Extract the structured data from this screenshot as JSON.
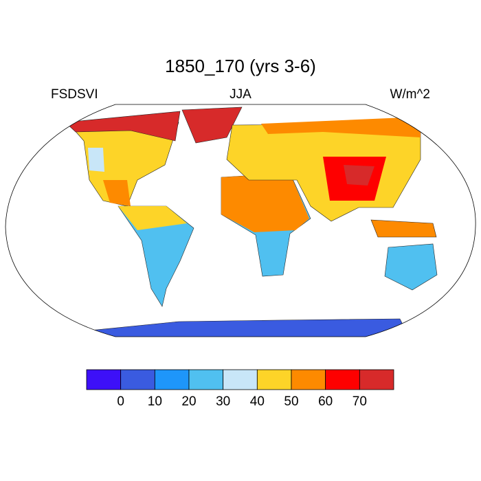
{
  "title": "1850_170 (yrs 3-6)",
  "left_label": "FSDSVI",
  "center_label": "JJA",
  "right_label": "W/m^2",
  "colorbar": {
    "levels": [
      0,
      10,
      20,
      30,
      40,
      50,
      60,
      70
    ],
    "colors": [
      "#3d10f8",
      "#3a5be0",
      "#1e96fa",
      "#50c0f0",
      "#c8e6f8",
      "#fdd428",
      "#fd8a00",
      "#fe0000",
      "#d72a2a"
    ]
  }
}
